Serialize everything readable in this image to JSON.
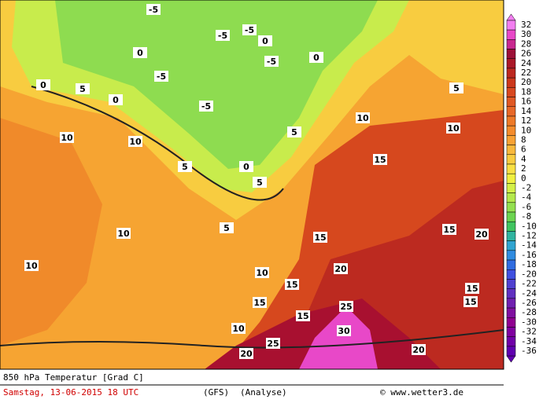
{
  "map": {
    "title": "850 hPa Temperatur [Grad C]",
    "date": "Samstag, 13-06-2015  18 UTC",
    "model": "(GFS)",
    "run": "(Analyse)",
    "credit": "© www.wetter3.de",
    "contour_labels": [
      "-5",
      "-5",
      "-5",
      "-5",
      "-5",
      "-5",
      "0",
      "0",
      "0",
      "0",
      "0",
      "0",
      "5",
      "5",
      "5",
      "5",
      "5",
      "5",
      "10",
      "10",
      "10",
      "10",
      "10",
      "10",
      "10",
      "10",
      "15",
      "15",
      "15",
      "15",
      "15",
      "15",
      "15",
      "15",
      "20",
      "20",
      "20",
      "20",
      "25",
      "25",
      "30"
    ]
  },
  "legend": {
    "ticks": [
      32,
      30,
      28,
      26,
      24,
      22,
      20,
      18,
      16,
      14,
      12,
      10,
      8,
      6,
      4,
      2,
      0,
      -2,
      -4,
      -6,
      -8,
      -10,
      -12,
      -14,
      -16,
      -18,
      -20,
      -22,
      -24,
      -26,
      -28,
      -30,
      -32,
      -34,
      -36
    ],
    "colors": [
      "#f27ef0",
      "#e848c8",
      "#c82890",
      "#9c1038",
      "#aa1828",
      "#bc2820",
      "#cc381c",
      "#d84820",
      "#e05824",
      "#e86828",
      "#ee7a28",
      "#f48c2c",
      "#f8a234",
      "#f8b83c",
      "#f8cc40",
      "#f8e044",
      "#f0f040",
      "#d4f048",
      "#b4e84c",
      "#94e050",
      "#6cd450",
      "#40c460",
      "#30b4a0",
      "#30a4d0",
      "#308ce0",
      "#306ce0",
      "#4050e0",
      "#5040d0",
      "#6030c0",
      "#7020b0",
      "#8010a0",
      "#900090",
      "#8000a0",
      "#7000a8",
      "#6000b0"
    ]
  }
}
